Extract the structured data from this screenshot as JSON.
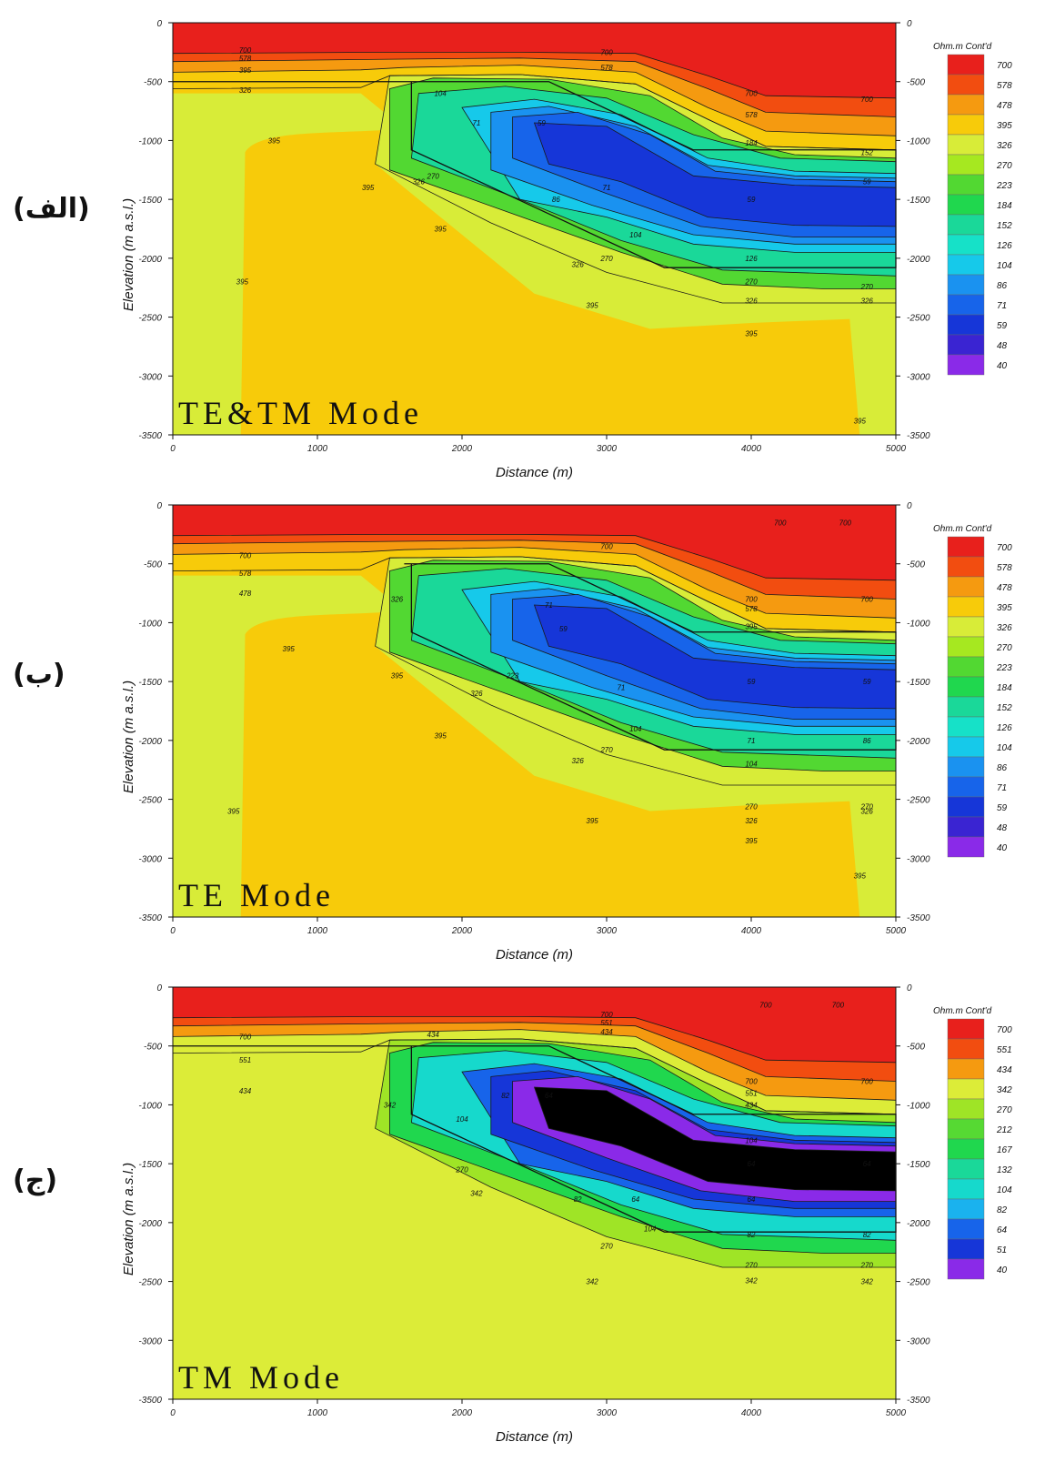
{
  "chart_data": [
    {
      "type": "heatmap",
      "panel_label": "(الف)",
      "mode": "TE&TM Mode",
      "xlabel": "Distance (m)",
      "ylabel": "Elevation (m a.s.l.)",
      "xlim": [
        0,
        5000
      ],
      "ylim": [
        -3500,
        0
      ],
      "x_ticks": [
        "0",
        "1000",
        "2000",
        "3000",
        "4000",
        "5000"
      ],
      "y_ticks": [
        "0",
        "-500",
        "-1000",
        "-1500",
        "-2000",
        "-2500",
        "-3000",
        "-3500"
      ],
      "legend_title": "Ohm.m Cont'd",
      "levels": [
        700,
        578,
        478,
        395,
        326,
        270,
        223,
        184,
        152,
        126,
        104,
        86,
        71,
        59,
        48,
        40
      ],
      "contour_labels": [
        {
          "x": 500,
          "y": -230,
          "v": "700"
        },
        {
          "x": 500,
          "y": -300,
          "v": "578"
        },
        {
          "x": 500,
          "y": -400,
          "v": "395"
        },
        {
          "x": 500,
          "y": -570,
          "v": "326"
        },
        {
          "x": 700,
          "y": -1000,
          "v": "395"
        },
        {
          "x": 1350,
          "y": -1400,
          "v": "395"
        },
        {
          "x": 1850,
          "y": -1750,
          "v": "395"
        },
        {
          "x": 480,
          "y": -2200,
          "v": "395"
        },
        {
          "x": 1700,
          "y": -1350,
          "v": "326"
        },
        {
          "x": 1800,
          "y": -1300,
          "v": "270"
        },
        {
          "x": 1850,
          "y": -600,
          "v": "104"
        },
        {
          "x": 2100,
          "y": -850,
          "v": "71"
        },
        {
          "x": 2550,
          "y": -850,
          "v": "59"
        },
        {
          "x": 2650,
          "y": -1500,
          "v": "86"
        },
        {
          "x": 3000,
          "y": -1400,
          "v": "71"
        },
        {
          "x": 3200,
          "y": -1800,
          "v": "104"
        },
        {
          "x": 3000,
          "y": -2000,
          "v": "270"
        },
        {
          "x": 2800,
          "y": -2050,
          "v": "326"
        },
        {
          "x": 2900,
          "y": -2400,
          "v": "395"
        },
        {
          "x": 3000,
          "y": -250,
          "v": "700"
        },
        {
          "x": 3000,
          "y": -380,
          "v": "578"
        },
        {
          "x": 4000,
          "y": -600,
          "v": "700"
        },
        {
          "x": 4000,
          "y": -780,
          "v": "578"
        },
        {
          "x": 4000,
          "y": -1020,
          "v": "184"
        },
        {
          "x": 4000,
          "y": -1500,
          "v": "59"
        },
        {
          "x": 4000,
          "y": -2000,
          "v": "126"
        },
        {
          "x": 4000,
          "y": -2200,
          "v": "270"
        },
        {
          "x": 4000,
          "y": -2360,
          "v": "326"
        },
        {
          "x": 4000,
          "y": -2640,
          "v": "395"
        },
        {
          "x": 4800,
          "y": -650,
          "v": "700"
        },
        {
          "x": 4800,
          "y": -1100,
          "v": "152"
        },
        {
          "x": 4800,
          "y": -1350,
          "v": "59"
        },
        {
          "x": 4800,
          "y": -2240,
          "v": "270"
        },
        {
          "x": 4800,
          "y": -2360,
          "v": "326"
        },
        {
          "x": 4750,
          "y": -3380,
          "v": "395"
        }
      ]
    },
    {
      "type": "heatmap",
      "panel_label": "(ب)",
      "mode": "TE Mode",
      "xlabel": "Distance (m)",
      "ylabel": "Elevation (m a.s.l.)",
      "xlim": [
        0,
        5000
      ],
      "ylim": [
        -3500,
        0
      ],
      "x_ticks": [
        "0",
        "1000",
        "2000",
        "3000",
        "4000",
        "5000"
      ],
      "y_ticks": [
        "0",
        "-500",
        "-1000",
        "-1500",
        "-2000",
        "-2500",
        "-3000",
        "-3500"
      ],
      "legend_title": "Ohm.m Cont'd",
      "levels": [
        700,
        578,
        478,
        395,
        326,
        270,
        223,
        184,
        152,
        126,
        104,
        86,
        71,
        59,
        48,
        40
      ],
      "contour_labels": [
        {
          "x": 500,
          "y": -430,
          "v": "700"
        },
        {
          "x": 500,
          "y": -580,
          "v": "578"
        },
        {
          "x": 500,
          "y": -750,
          "v": "478"
        },
        {
          "x": 800,
          "y": -1220,
          "v": "395"
        },
        {
          "x": 1550,
          "y": -1450,
          "v": "395"
        },
        {
          "x": 1850,
          "y": -1960,
          "v": "395"
        },
        {
          "x": 420,
          "y": -2600,
          "v": "395"
        },
        {
          "x": 1550,
          "y": -800,
          "v": "326"
        },
        {
          "x": 2100,
          "y": -1600,
          "v": "326"
        },
        {
          "x": 2350,
          "y": -1450,
          "v": "223"
        },
        {
          "x": 2600,
          "y": -850,
          "v": "71"
        },
        {
          "x": 2700,
          "y": -1050,
          "v": "59"
        },
        {
          "x": 3100,
          "y": -1550,
          "v": "71"
        },
        {
          "x": 3200,
          "y": -1900,
          "v": "104"
        },
        {
          "x": 3000,
          "y": -2080,
          "v": "270"
        },
        {
          "x": 2800,
          "y": -2170,
          "v": "326"
        },
        {
          "x": 2900,
          "y": -2680,
          "v": "395"
        },
        {
          "x": 3000,
          "y": -350,
          "v": "700"
        },
        {
          "x": 4200,
          "y": -150,
          "v": "700"
        },
        {
          "x": 4650,
          "y": -150,
          "v": "700"
        },
        {
          "x": 4000,
          "y": -800,
          "v": "700"
        },
        {
          "x": 4000,
          "y": -880,
          "v": "578"
        },
        {
          "x": 4000,
          "y": -1030,
          "v": "395"
        },
        {
          "x": 4000,
          "y": -1500,
          "v": "59"
        },
        {
          "x": 4000,
          "y": -2000,
          "v": "71"
        },
        {
          "x": 4000,
          "y": -2200,
          "v": "104"
        },
        {
          "x": 4000,
          "y": -2560,
          "v": "270"
        },
        {
          "x": 4000,
          "y": -2680,
          "v": "326"
        },
        {
          "x": 4000,
          "y": -2850,
          "v": "395"
        },
        {
          "x": 4800,
          "y": -800,
          "v": "700"
        },
        {
          "x": 4800,
          "y": -1500,
          "v": "59"
        },
        {
          "x": 4800,
          "y": -2000,
          "v": "86"
        },
        {
          "x": 4800,
          "y": -2560,
          "v": "270"
        },
        {
          "x": 4800,
          "y": -2600,
          "v": "326"
        },
        {
          "x": 4750,
          "y": -3150,
          "v": "395"
        }
      ]
    },
    {
      "type": "heatmap",
      "panel_label": "(ج)",
      "mode": "TM Mode",
      "xlabel": "Distance (m)",
      "ylabel": "Elevation (m a.s.l.)",
      "xlim": [
        0,
        5000
      ],
      "ylim": [
        -3500,
        0
      ],
      "x_ticks": [
        "0",
        "1000",
        "2000",
        "3000",
        "4000",
        "5000"
      ],
      "y_ticks": [
        "0",
        "-500",
        "-1000",
        "-1500",
        "-2000",
        "-2500",
        "-3000",
        "-3500"
      ],
      "legend_title": "Ohm.m Cont'd",
      "levels": [
        700,
        551,
        434,
        342,
        270,
        212,
        167,
        132,
        104,
        82,
        64,
        51,
        40
      ],
      "contour_labels": [
        {
          "x": 500,
          "y": -420,
          "v": "700"
        },
        {
          "x": 500,
          "y": -620,
          "v": "551"
        },
        {
          "x": 500,
          "y": -880,
          "v": "434"
        },
        {
          "x": 1500,
          "y": -1000,
          "v": "342"
        },
        {
          "x": 1800,
          "y": -400,
          "v": "434"
        },
        {
          "x": 2000,
          "y": -1550,
          "v": "270"
        },
        {
          "x": 2100,
          "y": -1750,
          "v": "342"
        },
        {
          "x": 2000,
          "y": -1120,
          "v": "104"
        },
        {
          "x": 2300,
          "y": -920,
          "v": "82"
        },
        {
          "x": 2600,
          "y": -920,
          "v": "64"
        },
        {
          "x": 2800,
          "y": -1800,
          "v": "82"
        },
        {
          "x": 3200,
          "y": -1800,
          "v": "64"
        },
        {
          "x": 3300,
          "y": -2050,
          "v": "104"
        },
        {
          "x": 3000,
          "y": -2200,
          "v": "270"
        },
        {
          "x": 2900,
          "y": -2500,
          "v": "342"
        },
        {
          "x": 3000,
          "y": -230,
          "v": "700"
        },
        {
          "x": 3000,
          "y": -300,
          "v": "551"
        },
        {
          "x": 3000,
          "y": -380,
          "v": "434"
        },
        {
          "x": 4100,
          "y": -150,
          "v": "700"
        },
        {
          "x": 4600,
          "y": -150,
          "v": "700"
        },
        {
          "x": 4000,
          "y": -800,
          "v": "700"
        },
        {
          "x": 4000,
          "y": -900,
          "v": "551"
        },
        {
          "x": 4000,
          "y": -1000,
          "v": "434"
        },
        {
          "x": 4000,
          "y": -1300,
          "v": "104"
        },
        {
          "x": 4000,
          "y": -1500,
          "v": "64"
        },
        {
          "x": 4000,
          "y": -1800,
          "v": "64"
        },
        {
          "x": 4000,
          "y": -2100,
          "v": "82"
        },
        {
          "x": 4000,
          "y": -2360,
          "v": "270"
        },
        {
          "x": 4000,
          "y": -2490,
          "v": "342"
        },
        {
          "x": 4800,
          "y": -800,
          "v": "700"
        },
        {
          "x": 4800,
          "y": -1500,
          "v": "64"
        },
        {
          "x": 4800,
          "y": -2100,
          "v": "82"
        },
        {
          "x": 4800,
          "y": -2360,
          "v": "270"
        },
        {
          "x": 4800,
          "y": -2500,
          "v": "342"
        }
      ]
    }
  ],
  "colors": {
    "scale16": [
      "#e8201c",
      "#f24d10",
      "#f59a10",
      "#f7cb0a",
      "#d8ec38",
      "#a6e820",
      "#52d832",
      "#20d74e",
      "#1ad899",
      "#16e1c8",
      "#16c9ea",
      "#1a92f0",
      "#1764ea",
      "#1636d8",
      "#3a24d2",
      "#8a2ae8"
    ],
    "scale13": [
      "#e8201c",
      "#f24d10",
      "#f59a10",
      "#dcec38",
      "#9fe426",
      "#56d933",
      "#20d74e",
      "#1ad899",
      "#16d9cc",
      "#1ab2ee",
      "#1764ea",
      "#1636d8",
      "#8a2ae8"
    ]
  }
}
